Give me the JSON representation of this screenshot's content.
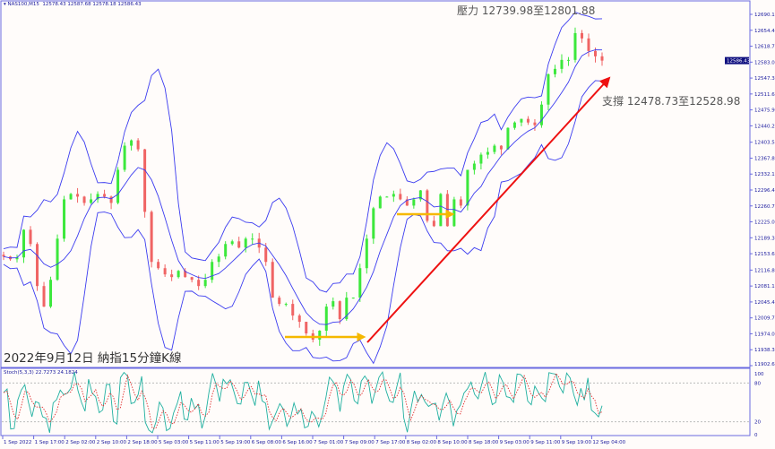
{
  "header": {
    "symbol": "NAS100,M15",
    "ohlc": "12578.43 12587.68 12578.18 12586.43"
  },
  "annotations": {
    "title": "2022年9月12日 納指15分鐘K線",
    "resistance": "壓力 12739.98至12801.88",
    "support": "支撐 12478.73至12528.98"
  },
  "current_price": "12586.43",
  "stochastic": {
    "label": "Stoch(5,3,3) 22.7273 24.1824",
    "levels": [
      "100",
      "80",
      "20",
      "0"
    ]
  },
  "colors": {
    "up": "#3ce83c",
    "down": "#f06464",
    "bands": "#3c3cf0",
    "trendline": "#ee1111",
    "arrow": "#f5b800",
    "stoch_main": "#20b0a0",
    "stoch_signal": "#e03030",
    "axis": "#6a6ae0"
  },
  "chart_data": {
    "type": "line",
    "title": "",
    "xlabel": "",
    "ylabel": "",
    "ylim": [
      11902.65,
      12690.15
    ],
    "y_ticks": [
      "12690.15",
      "12654.45",
      "12618.75",
      "12583.05",
      "12547.35",
      "12511.65",
      "12475.95",
      "12440.25",
      "12403.50",
      "12367.80",
      "12332.10",
      "12296.40",
      "12260.70",
      "12225.00",
      "12189.30",
      "12153.60",
      "12116.85",
      "12081.15",
      "12045.45",
      "12009.75",
      "11974.05",
      "11938.35",
      "11902.65"
    ],
    "x_ticks": [
      "1 Sep 2022",
      "1 Sep 17:00",
      "2 Sep 02:00",
      "2 Sep 10:00",
      "2 Sep 18:00",
      "5 Sep 03:00",
      "5 Sep 11:00",
      "5 Sep 19:00",
      "6 Sep 08:00",
      "6 Sep 16:00",
      "7 Sep 01:00",
      "7 Sep 09:00",
      "7 Sep 17:00",
      "8 Sep 02:00",
      "8 Sep 10:00",
      "8 Sep 18:00",
      "9 Sep 03:00",
      "9 Sep 11:00",
      "9 Sep 19:00",
      "12 Sep 04:00"
    ],
    "closes": [
      12147.2,
      12141.2,
      12145.2,
      12207.3,
      12175.3,
      12081.1,
      12035.0,
      12095.1,
      12187.3,
      12275.4,
      12287.5,
      12281.5,
      12267.4,
      12275.4,
      12287.5,
      12281.5,
      12267.4,
      12341.6,
      12395.7,
      12407.7,
      12387.6,
      12247.4,
      12135.2,
      12121.2,
      12107.2,
      12101.2,
      12115.2,
      12101.2,
      12095.1,
      12081.1,
      12095.1,
      12135.2,
      12147.2,
      12175.3,
      12181.3,
      12167.3,
      12187.3,
      12187.3,
      12167.3,
      12135.2,
      12055.1,
      12041.1,
      12041.1,
      12015.0,
      12001.0,
      11975.0,
      11961.0,
      11981.0,
      12035.0,
      12047.1,
      12007.0,
      12055.1,
      12055.1,
      12121.2,
      12187.3,
      12255.4,
      12281.5,
      12281.5,
      12287.5,
      12275.4,
      12261.4,
      12275.4,
      12295.5,
      12227.4,
      12215.4,
      12287.5,
      12215.4,
      12275.4,
      12261.4,
      12341.6,
      12355.6,
      12375.6,
      12381.6,
      12395.7,
      12387.6,
      12435.7,
      12447.7,
      12455.8,
      12447.7,
      12441.7,
      12487.8,
      12555.9,
      12567.9,
      12588.0,
      12588.0,
      12648.1,
      12636.1,
      12608.0,
      12596.0,
      12586.43
    ]
  }
}
